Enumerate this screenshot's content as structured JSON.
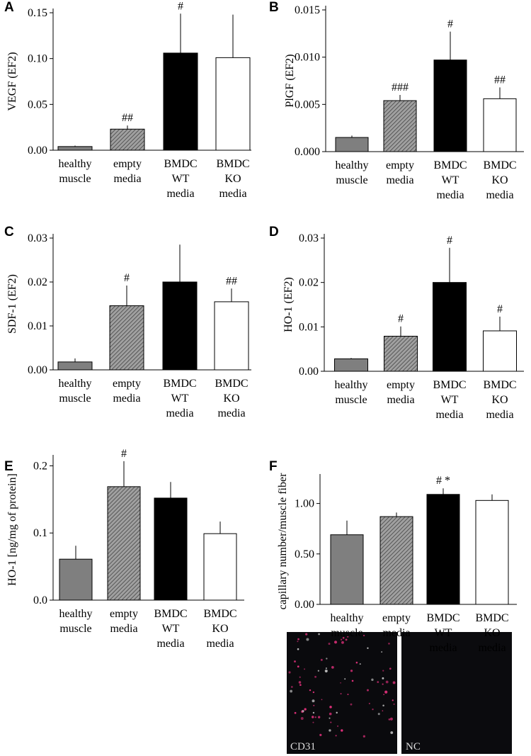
{
  "chart_data": [
    {
      "type": "bar",
      "panel": "A",
      "ylabel": "VEGF (EF2)",
      "categories": [
        [
          "healthy",
          "muscle"
        ],
        [
          "empty",
          "media"
        ],
        [
          "BMDC",
          "WT",
          "media"
        ],
        [
          "BMDC",
          "KO",
          "media"
        ]
      ],
      "values": [
        0.004,
        0.023,
        0.106,
        0.101
      ],
      "errors": [
        0.001,
        0.004,
        0.043,
        0.047
      ],
      "annotations": [
        null,
        "##",
        "#",
        null
      ],
      "colors": [
        "#7f7f7f",
        "hatch",
        "#000000",
        "#ffffff"
      ],
      "ylim": [
        0,
        0.15
      ],
      "yticks": [
        {
          "value": 0,
          "label": "0.00"
        },
        {
          "value": 0.05,
          "label": "0.05"
        },
        {
          "value": 0.1,
          "label": "0.10"
        },
        {
          "value": 0.15,
          "label": "0.15"
        }
      ]
    },
    {
      "type": "bar",
      "panel": "B",
      "ylabel": "PlGF (EF2)",
      "categories": [
        [
          "healthy",
          "muscle"
        ],
        [
          "empty",
          "media"
        ],
        [
          "BMDC",
          "WT",
          "media"
        ],
        [
          "BMDC",
          "KO",
          "media"
        ]
      ],
      "values": [
        0.0015,
        0.0054,
        0.0097,
        0.0056
      ],
      "errors": [
        0.0002,
        0.0006,
        0.003,
        0.0012
      ],
      "annotations": [
        null,
        "###",
        "#",
        "##"
      ],
      "colors": [
        "#7f7f7f",
        "hatch",
        "#000000",
        "#ffffff"
      ],
      "ylim": [
        0,
        0.015
      ],
      "yticks": [
        {
          "value": 0,
          "label": "0.000"
        },
        {
          "value": 0.005,
          "label": "0.005"
        },
        {
          "value": 0.01,
          "label": "0.010"
        },
        {
          "value": 0.015,
          "label": "0.015"
        }
      ]
    },
    {
      "type": "bar",
      "panel": "C",
      "ylabel": "SDF-1 (EF2)",
      "categories": [
        [
          "healthy",
          "muscle"
        ],
        [
          "empty",
          "media"
        ],
        [
          "BMDC",
          "WT",
          "media"
        ],
        [
          "BMDC",
          "KO",
          "media"
        ]
      ],
      "values": [
        0.0018,
        0.0146,
        0.02,
        0.0155
      ],
      "errors": [
        0.0008,
        0.0046,
        0.0085,
        0.003
      ],
      "annotations": [
        null,
        "#",
        null,
        "##"
      ],
      "colors": [
        "#7f7f7f",
        "hatch",
        "#000000",
        "#ffffff"
      ],
      "ylim": [
        0,
        0.03
      ],
      "yticks": [
        {
          "value": 0,
          "label": "0.00"
        },
        {
          "value": 0.01,
          "label": "0.01"
        },
        {
          "value": 0.02,
          "label": "0.02"
        },
        {
          "value": 0.03,
          "label": "0.03"
        }
      ]
    },
    {
      "type": "bar",
      "panel": "D",
      "ylabel": "HO-1 (EF2)",
      "categories": [
        [
          "healthy",
          "muscle"
        ],
        [
          "empty",
          "media"
        ],
        [
          "BMDC",
          "WT",
          "media"
        ],
        [
          "BMDC",
          "KO",
          "media"
        ]
      ],
      "values": [
        0.0028,
        0.0079,
        0.02,
        0.0091
      ],
      "errors": [
        0.0002,
        0.0022,
        0.0078,
        0.0032
      ],
      "annotations": [
        null,
        "#",
        "#",
        "#"
      ],
      "colors": [
        "#7f7f7f",
        "hatch",
        "#000000",
        "#ffffff"
      ],
      "ylim": [
        0,
        0.03
      ],
      "yticks": [
        {
          "value": 0,
          "label": "0.00"
        },
        {
          "value": 0.01,
          "label": "0.01"
        },
        {
          "value": 0.02,
          "label": "0.02"
        },
        {
          "value": 0.03,
          "label": "0.03"
        }
      ]
    },
    {
      "type": "bar",
      "panel": "E",
      "ylabel": "HO-1 [ng/mg of protein]",
      "categories": [
        [
          "healthy",
          "muscle"
        ],
        [
          "empty",
          "media"
        ],
        [
          "BMDC",
          "WT",
          "media"
        ],
        [
          "BMDC",
          "KO",
          "media"
        ]
      ],
      "values": [
        0.061,
        0.169,
        0.152,
        0.099
      ],
      "errors": [
        0.02,
        0.038,
        0.024,
        0.018
      ],
      "annotations": [
        null,
        "#",
        null,
        null
      ],
      "colors": [
        "#7f7f7f",
        "hatch",
        "#000000",
        "#ffffff"
      ],
      "ylim": [
        0,
        0.21
      ],
      "yticks": [
        {
          "value": 0,
          "label": "0.0"
        },
        {
          "value": 0.1,
          "label": "0.1"
        },
        {
          "value": 0.2,
          "label": "0.2"
        }
      ]
    },
    {
      "type": "bar",
      "panel": "F",
      "ylabel": "capillary number/muscle fiber",
      "categories": [
        [
          "healthy",
          "muscle"
        ],
        [
          "empty",
          "media"
        ],
        [
          "BMDC",
          "WT",
          "media"
        ],
        [
          "BMDC",
          "KO",
          "media"
        ]
      ],
      "values": [
        0.69,
        0.87,
        1.09,
        1.03
      ],
      "errors": [
        0.14,
        0.04,
        0.06,
        0.06
      ],
      "annotations": [
        null,
        null,
        "#  *",
        null
      ],
      "colors": [
        "#7f7f7f",
        "hatch",
        "#000000",
        "#ffffff"
      ],
      "ylim": [
        0,
        1.25
      ],
      "yticks": [
        {
          "value": 0,
          "label": "0.00"
        },
        {
          "value": 0.5,
          "label": "0.50"
        },
        {
          "value": 1,
          "label": "1.00"
        }
      ]
    }
  ],
  "micrographs": [
    {
      "label": "CD31"
    },
    {
      "label": "NC"
    }
  ]
}
